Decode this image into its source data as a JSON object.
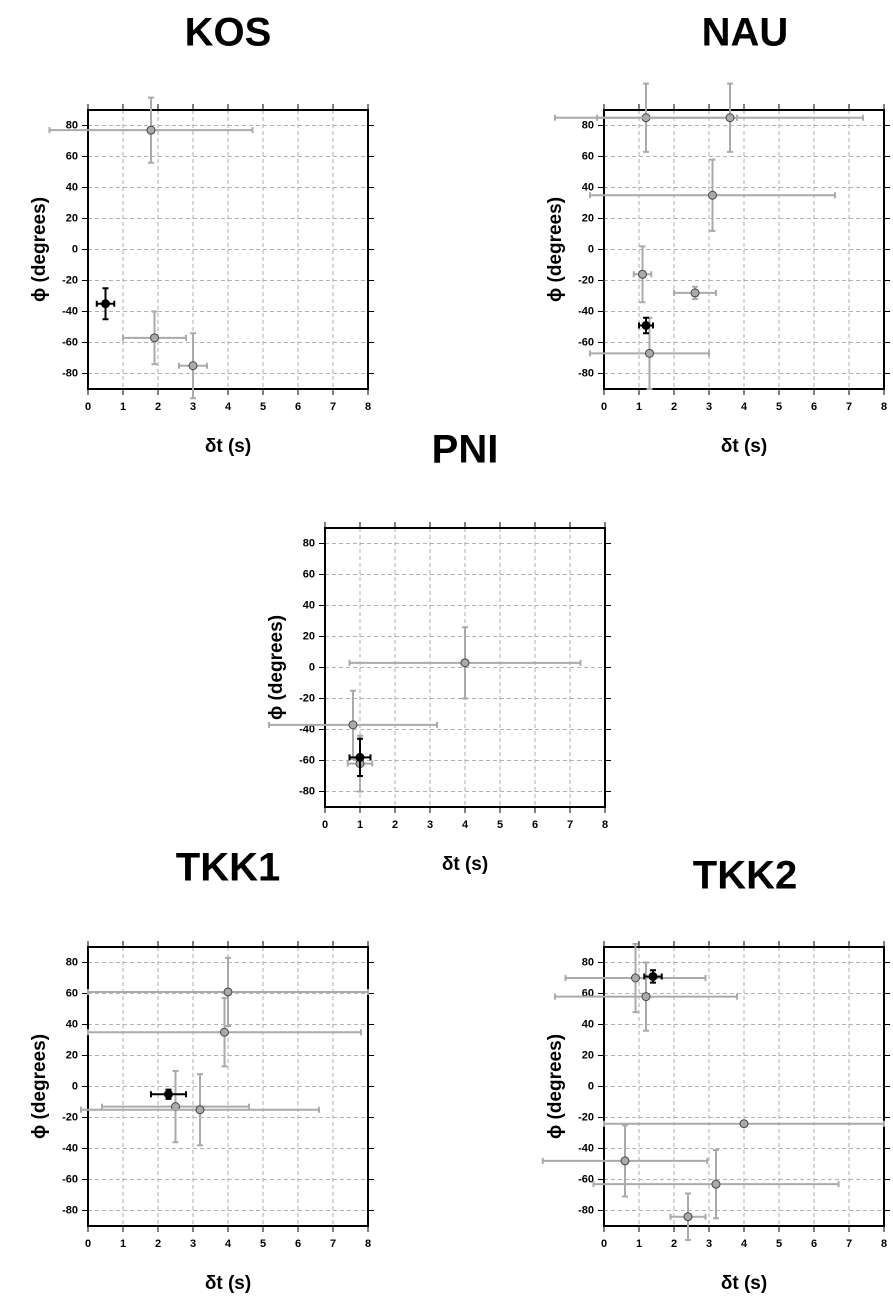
{
  "chart_data": [
    {
      "type": "scatter",
      "title": "KOS",
      "x_label": "δt (s)",
      "y_label": "ϕ (degrees)",
      "xlim": [
        0,
        8
      ],
      "ylim": [
        -90,
        90
      ],
      "xticks": [
        0,
        1,
        2,
        3,
        4,
        5,
        6,
        7,
        8
      ],
      "yticks": [
        -80,
        -60,
        -40,
        -20,
        0,
        20,
        40,
        60,
        80
      ],
      "grid": true,
      "series": [
        {
          "color": "#aaaaaa",
          "x": [
            1.8,
            1.9,
            3.0
          ],
          "values": [
            77,
            -57,
            -75
          ],
          "xerr": [
            2.9,
            0.9,
            0.4
          ],
          "yerr": [
            21,
            17,
            21
          ]
        },
        {
          "color": "#000000",
          "x": [
            0.5
          ],
          "values": [
            -35
          ],
          "xerr": [
            0.25
          ],
          "yerr": [
            10
          ]
        }
      ]
    },
    {
      "type": "scatter",
      "title": "NAU",
      "x_label": "δt (s)",
      "y_label": "ϕ (degrees)",
      "xlim": [
        0,
        8
      ],
      "ylim": [
        -90,
        90
      ],
      "xticks": [
        0,
        1,
        2,
        3,
        4,
        5,
        6,
        7,
        8
      ],
      "yticks": [
        -80,
        -60,
        -40,
        -20,
        0,
        20,
        40,
        60,
        80
      ],
      "grid": true,
      "series": [
        {
          "color": "#aaaaaa",
          "x": [
            1.2,
            3.6,
            3.1,
            1.1,
            2.6,
            1.3
          ],
          "values": [
            85,
            85,
            35,
            -16,
            -28,
            -67
          ],
          "xerr": [
            2.6,
            3.8,
            3.5,
            0.25,
            0.6,
            1.7
          ],
          "yerr": [
            22,
            22,
            23,
            18,
            4,
            23
          ]
        },
        {
          "color": "#000000",
          "x": [
            1.2
          ],
          "values": [
            -49
          ],
          "xerr": [
            0.2
          ],
          "yerr": [
            5
          ]
        }
      ]
    },
    {
      "type": "scatter",
      "title": "PNI",
      "x_label": "δt (s)",
      "y_label": "ϕ (degrees)",
      "xlim": [
        0,
        8
      ],
      "ylim": [
        -90,
        90
      ],
      "xticks": [
        0,
        1,
        2,
        3,
        4,
        5,
        6,
        7,
        8
      ],
      "yticks": [
        -80,
        -60,
        -40,
        -20,
        0,
        20,
        40,
        60,
        80
      ],
      "grid": true,
      "series": [
        {
          "color": "#aaaaaa",
          "x": [
            4.0,
            0.8,
            1.0
          ],
          "values": [
            3,
            -37,
            -62
          ],
          "xerr": [
            3.3,
            2.4,
            0.35
          ],
          "yerr": [
            23,
            22,
            18
          ]
        },
        {
          "color": "#000000",
          "x": [
            1.0
          ],
          "values": [
            -58
          ],
          "xerr": [
            0.3
          ],
          "yerr": [
            12
          ]
        }
      ]
    },
    {
      "type": "scatter",
      "title": "TKK1",
      "x_label": "δt (s)",
      "y_label": "ϕ (degrees)",
      "xlim": [
        0,
        8
      ],
      "ylim": [
        -90,
        90
      ],
      "xticks": [
        0,
        1,
        2,
        3,
        4,
        5,
        6,
        7,
        8
      ],
      "yticks": [
        -80,
        -60,
        -40,
        -20,
        0,
        20,
        40,
        60,
        80
      ],
      "grid": true,
      "series": [
        {
          "color": "#aaaaaa",
          "x": [
            4.0,
            3.9,
            2.5,
            3.2
          ],
          "values": [
            61,
            35,
            -13,
            -15
          ],
          "xerr": [
            4,
            3.9,
            2.1,
            3.4
          ],
          "yerr": [
            22,
            22,
            23,
            23
          ]
        },
        {
          "color": "#000000",
          "x": [
            2.3
          ],
          "values": [
            -5
          ],
          "xerr": [
            0.5
          ],
          "yerr": [
            3
          ]
        }
      ]
    },
    {
      "type": "scatter",
      "title": "TKK2",
      "x_label": "δt (s)",
      "y_label": "ϕ (degrees)",
      "xlim": [
        0,
        8
      ],
      "ylim": [
        -90,
        90
      ],
      "xticks": [
        0,
        1,
        2,
        3,
        4,
        5,
        6,
        7,
        8
      ],
      "yticks": [
        -80,
        -60,
        -40,
        -20,
        0,
        20,
        40,
        60,
        80
      ],
      "grid": true,
      "series": [
        {
          "color": "#aaaaaa",
          "x": [
            0.9,
            1.2,
            4.0,
            0.6,
            3.2,
            2.4
          ],
          "values": [
            70,
            58,
            -24,
            -48,
            -63,
            -84
          ],
          "xerr": [
            2,
            2.6,
            4,
            2.35,
            3.5,
            0.5
          ],
          "yerr": [
            22,
            22,
            0,
            23,
            22,
            15
          ]
        },
        {
          "color": "#000000",
          "x": [
            1.4
          ],
          "values": [
            71
          ],
          "xerr": [
            0.25
          ],
          "yerr": [
            4
          ]
        }
      ]
    }
  ]
}
